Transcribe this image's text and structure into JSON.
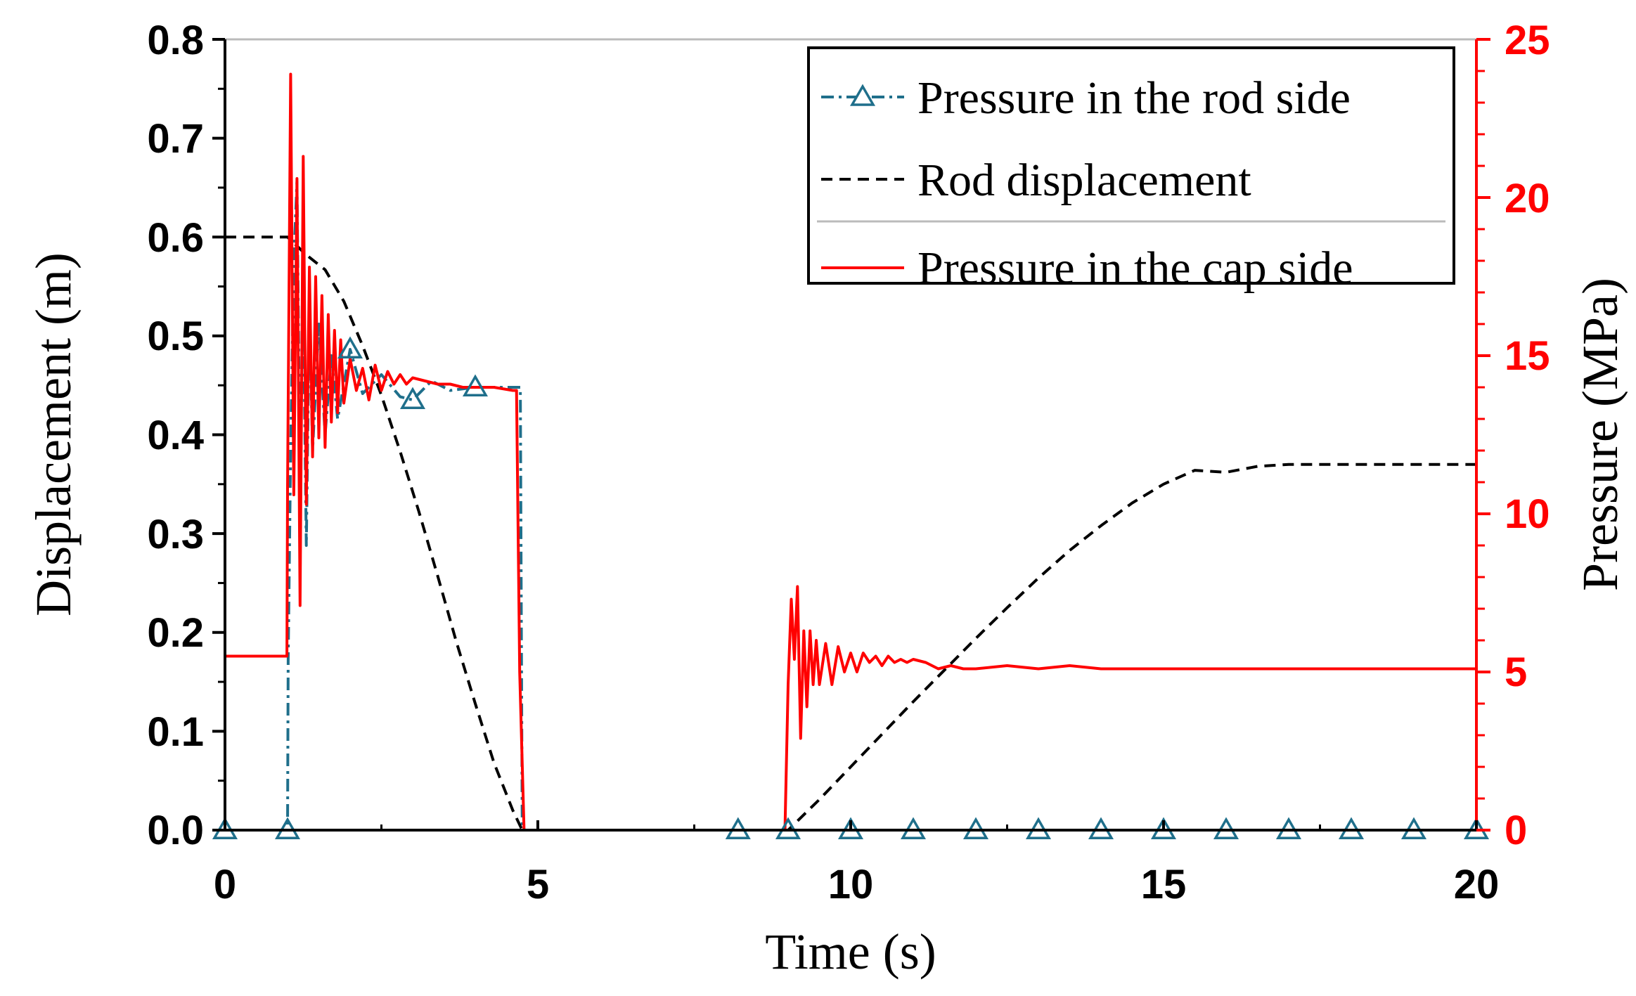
{
  "chart_data": {
    "type": "line",
    "title": "",
    "xlabel": "Time (s)",
    "ylabel_left": "Displacement (m)",
    "ylabel_right": "Pressure (MPa)",
    "xlim": [
      0,
      20
    ],
    "ylim_left": [
      0,
      0.8
    ],
    "ylim_right": [
      0,
      25
    ],
    "x_ticks": [
      0,
      5,
      10,
      15,
      20
    ],
    "x_tick_labels": [
      "0",
      "5",
      "10",
      "15",
      "20"
    ],
    "y_left_ticks": [
      0.0,
      0.1,
      0.2,
      0.3,
      0.4,
      0.5,
      0.6,
      0.7,
      0.8
    ],
    "y_left_tick_labels": [
      "0.0",
      "0.1",
      "0.2",
      "0.3",
      "0.4",
      "0.5",
      "0.6",
      "0.7",
      "0.8"
    ],
    "y_right_ticks": [
      0,
      5,
      10,
      15,
      20,
      25
    ],
    "y_right_tick_labels": [
      "0",
      "5",
      "10",
      "15",
      "20",
      "25"
    ],
    "legend_position": "top-right",
    "colors": {
      "rod_pressure": "#1f6f8b",
      "rod_displacement": "#000000",
      "cap_pressure": "#ff0000",
      "right_axis": "#ff0000",
      "top_axis": "#bbbbbb"
    },
    "series": [
      {
        "name": "Pressure in the rod side",
        "axis": "right",
        "style": "dash-dot-triangle",
        "x": [
          0,
          1.0,
          1.01,
          1.05,
          1.1,
          1.15,
          1.2,
          1.25,
          1.3,
          1.35,
          1.4,
          1.5,
          1.6,
          1.7,
          1.8,
          2.0,
          2.2,
          2.5,
          2.8,
          3.0,
          3.3,
          3.6,
          4.0,
          4.3,
          4.65,
          4.72,
          4.75,
          5.0,
          8.2,
          9.0,
          9.05,
          10,
          11,
          12,
          13,
          14,
          15,
          16,
          17,
          18,
          19,
          20
        ],
        "y": [
          0,
          0,
          5.4,
          12,
          18,
          20.5,
          11,
          17,
          9,
          16.5,
          12,
          16,
          12.5,
          15,
          13,
          15.2,
          13.8,
          14.4,
          13.7,
          13.6,
          14.2,
          13.9,
          14.0,
          14.0,
          14.0,
          14.0,
          0,
          0,
          0,
          0,
          0,
          0,
          0,
          0,
          0,
          0,
          0,
          0,
          0,
          0,
          0,
          0
        ],
        "marker_x": [
          0,
          1,
          2,
          3,
          4,
          8.2,
          9,
          10,
          11,
          12,
          13,
          14,
          15,
          16,
          17,
          18,
          19,
          20
        ],
        "marker_y": [
          0,
          0,
          15.2,
          13.6,
          14.0,
          0,
          0,
          0,
          0,
          0,
          0,
          0,
          0,
          0,
          0,
          0,
          0,
          0
        ]
      },
      {
        "name": "Rod displacement",
        "axis": "left",
        "style": "dashed",
        "x": [
          0,
          1.0,
          1.3,
          1.6,
          1.9,
          2.2,
          2.5,
          2.8,
          3.1,
          3.4,
          3.7,
          4.0,
          4.3,
          4.6,
          4.75,
          5.0,
          9.0,
          9.5,
          10,
          10.5,
          11,
          11.5,
          12,
          12.5,
          13,
          13.5,
          14,
          14.5,
          15,
          15.5,
          16,
          16.5,
          17,
          17.5,
          18,
          19,
          20
        ],
        "y": [
          0.6,
          0.6,
          0.582,
          0.567,
          0.535,
          0.49,
          0.44,
          0.383,
          0.322,
          0.257,
          0.19,
          0.128,
          0.068,
          0.02,
          0.0,
          0.0,
          0.0,
          0.031,
          0.064,
          0.097,
          0.13,
          0.162,
          0.194,
          0.225,
          0.255,
          0.283,
          0.308,
          0.331,
          0.35,
          0.364,
          0.362,
          0.368,
          0.37,
          0.37,
          0.37,
          0.37,
          0.37
        ]
      },
      {
        "name": "Pressure in the cap side",
        "axis": "right",
        "style": "solid",
        "x": [
          0,
          0.99,
          1.0,
          1.05,
          1.1,
          1.15,
          1.2,
          1.25,
          1.3,
          1.35,
          1.4,
          1.45,
          1.5,
          1.55,
          1.6,
          1.65,
          1.7,
          1.75,
          1.8,
          1.85,
          1.9,
          2.0,
          2.1,
          2.2,
          2.3,
          2.4,
          2.5,
          2.6,
          2.7,
          2.8,
          2.9,
          3.0,
          3.2,
          3.4,
          3.6,
          3.8,
          4.0,
          4.3,
          4.6,
          4.66,
          4.71,
          4.78,
          4.8,
          5.0,
          8.95,
          9.0,
          9.05,
          9.1,
          9.15,
          9.2,
          9.25,
          9.3,
          9.35,
          9.4,
          9.45,
          9.5,
          9.6,
          9.7,
          9.8,
          9.9,
          10.0,
          10.1,
          10.2,
          10.3,
          10.4,
          10.5,
          10.6,
          10.7,
          10.8,
          10.9,
          11.0,
          11.2,
          11.4,
          11.6,
          11.8,
          12.0,
          12.5,
          13.0,
          13.5,
          14.0,
          15,
          16,
          17,
          18,
          19,
          20
        ],
        "y": [
          5.5,
          5.5,
          10.8,
          23.9,
          10.6,
          20.6,
          7.1,
          21.3,
          10.3,
          17.8,
          11.8,
          17.5,
          12.4,
          16.9,
          12.1,
          16.3,
          12.9,
          15.8,
          13.2,
          15.5,
          13.5,
          14.9,
          13.9,
          14.6,
          13.6,
          14.7,
          13.9,
          14.5,
          14.1,
          14.4,
          14.1,
          14.3,
          14.2,
          14.1,
          14.1,
          14.0,
          14.0,
          14.0,
          13.9,
          13.9,
          5.0,
          0.0,
          0.0,
          0.0,
          0.0,
          4.6,
          7.3,
          5.4,
          7.7,
          2.9,
          6.3,
          3.9,
          6.3,
          4.6,
          6.0,
          4.6,
          5.9,
          4.6,
          5.8,
          5.0,
          5.6,
          5.0,
          5.6,
          5.3,
          5.5,
          5.2,
          5.5,
          5.3,
          5.4,
          5.3,
          5.4,
          5.3,
          5.1,
          5.2,
          5.1,
          5.1,
          5.2,
          5.1,
          5.2,
          5.1,
          5.1,
          5.1,
          5.1,
          5.1,
          5.1,
          5.1
        ]
      }
    ]
  }
}
